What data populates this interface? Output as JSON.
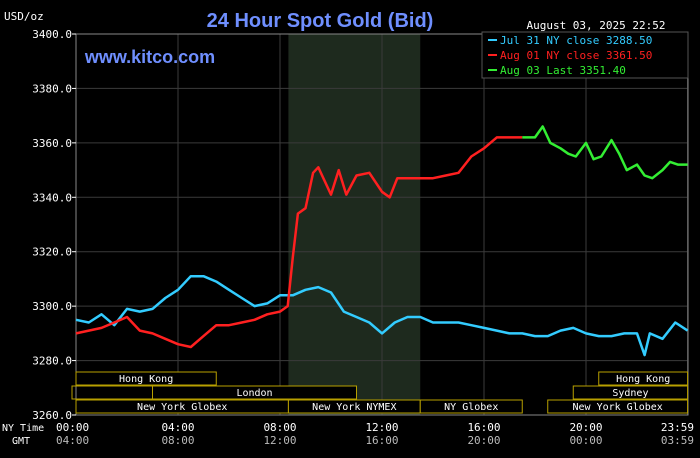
{
  "chart_data": {
    "type": "line",
    "title": "24 Hour Spot Gold (Bid)",
    "watermark": "www.kitco.com",
    "y_unit_label": "USD/oz",
    "timestamp": "August 03, 2025 22:52",
    "ylim": [
      3260,
      3400
    ],
    "y_ticks": [
      "3400.0",
      "3380.0",
      "3360.0",
      "3340.0",
      "3320.0",
      "3300.0",
      "3280.0",
      "3260.0"
    ],
    "y_tick_values": [
      3400,
      3380,
      3360,
      3340,
      3320,
      3300,
      3280,
      3260
    ],
    "x_range_hours": [
      0,
      24
    ],
    "x_tick_hours": [
      0,
      4,
      8,
      12,
      16,
      20,
      23.983
    ],
    "ny_time_label": "NY Time",
    "gmt_label": "GMT",
    "x_ticks_ny": [
      "00:00",
      "04:00",
      "08:00",
      "12:00",
      "16:00",
      "20:00",
      "23:59"
    ],
    "x_ticks_gmt": [
      "04:00",
      "08:00",
      "12:00",
      "16:00",
      "20:00",
      "00:00",
      "03:59"
    ],
    "shaded_region_hours": [
      8.33,
      13.5
    ],
    "legend": [
      {
        "label": "Jul 31 NY close 3288.50",
        "color": "#33ccff"
      },
      {
        "label": "Aug 01 NY close 3361.50",
        "color": "#ff2020"
      },
      {
        "label": "Aug 03 Last 3351.40",
        "color": "#33ee33"
      }
    ],
    "series": [
      {
        "name": "Jul 31 NY close 3288.50",
        "color": "#33ccff",
        "x": [
          0,
          0.5,
          1,
          1.5,
          2,
          2.5,
          3,
          3.5,
          4,
          4.5,
          5,
          5.5,
          6,
          6.5,
          7,
          7.5,
          8,
          8.5,
          9,
          9.5,
          10,
          10.5,
          11,
          11.5,
          12,
          12.5,
          13,
          13.5,
          14,
          14.5,
          15,
          15.5,
          16,
          16.5,
          17,
          17.5,
          18,
          18.5,
          19,
          19.5,
          20,
          20.5,
          21,
          21.5,
          22,
          22.3,
          22.5,
          23,
          23.5,
          23.983
        ],
        "values": [
          3295,
          3294,
          3297,
          3293,
          3299,
          3298,
          3299,
          3303,
          3306,
          3311,
          3311,
          3309,
          3306,
          3303,
          3300,
          3301,
          3304,
          3304,
          3306,
          3307,
          3305,
          3298,
          3296,
          3294,
          3290,
          3294,
          3296,
          3296,
          3294,
          3294,
          3294,
          3293,
          3292,
          3291,
          3290,
          3290,
          3289,
          3289,
          3291,
          3292,
          3290,
          3289,
          3289,
          3290,
          3290,
          3282,
          3290,
          3288,
          3294,
          3291
        ]
      },
      {
        "name": "Aug 01 NY close 3361.50",
        "color": "#ff2020",
        "x": [
          0,
          0.5,
          1,
          1.5,
          2,
          2.5,
          3,
          3.5,
          4,
          4.5,
          5,
          5.5,
          6,
          6.5,
          7,
          7.5,
          8,
          8.3,
          8.5,
          8.7,
          9,
          9.3,
          9.5,
          10,
          10.3,
          10.6,
          11,
          11.5,
          12,
          12.3,
          12.6,
          13,
          13.5,
          14,
          14.5,
          15,
          15.5,
          16,
          16.5,
          17,
          17.5
        ],
        "values": [
          3290,
          3291,
          3292,
          3294,
          3296,
          3291,
          3290,
          3288,
          3286,
          3285,
          3289,
          3293,
          3293,
          3294,
          3295,
          3297,
          3298,
          3300,
          3318,
          3334,
          3336,
          3349,
          3351,
          3341,
          3350,
          3341,
          3348,
          3349,
          3342,
          3340,
          3347,
          3347,
          3347,
          3347,
          3348,
          3349,
          3355,
          3358,
          3362,
          3362,
          3362
        ]
      },
      {
        "name": "Aug 03 Last 3351.40",
        "color": "#33ee33",
        "x": [
          17.5,
          18,
          18.3,
          18.6,
          19,
          19.3,
          19.6,
          20,
          20.3,
          20.6,
          21,
          21.3,
          21.6,
          22,
          22.3,
          22.6,
          23,
          23.3,
          23.6,
          23.983
        ],
        "values": [
          3362,
          3362,
          3366,
          3360,
          3358,
          3356,
          3355,
          3360,
          3354,
          3355,
          3361,
          3356,
          3350,
          3352,
          3348,
          3347,
          3350,
          3353,
          3352,
          3352
        ]
      }
    ]
  },
  "sessions": [
    {
      "row": 1,
      "label": "Hong Kong",
      "start": 0,
      "end": 5.5,
      "labeled": true
    },
    {
      "row": 1,
      "label": "Hong Kong",
      "start": 20.5,
      "end": 23.983,
      "labeled": true
    },
    {
      "row": 2,
      "label": "London",
      "start": 3,
      "end": 11,
      "labeled": true
    },
    {
      "row": 2,
      "label": "Sydney",
      "start": 19.5,
      "end": 23.983,
      "labeled": true
    },
    {
      "row": 3,
      "label": "New York Globex",
      "start": 0,
      "end": 8.33,
      "labeled": true
    },
    {
      "row": 3,
      "label": "New York NYMEX",
      "start": 8.33,
      "end": 13.5,
      "labeled": true
    },
    {
      "row": 3,
      "label": "NY Globex",
      "start": 13.5,
      "end": 17.5,
      "labeled": true
    },
    {
      "row": 3,
      "label": "New York Globex",
      "start": 18.5,
      "end": 23.983,
      "labeled": true
    }
  ],
  "colors": {
    "background": "#000000",
    "grid": "#3b3b3b",
    "axis_text": "#ffffff",
    "title": "#6f8fff",
    "watermark": "#6f8fff",
    "session_box": "#b8a000",
    "session_text": "#ffffff",
    "shaded": "#1e2a1e"
  }
}
